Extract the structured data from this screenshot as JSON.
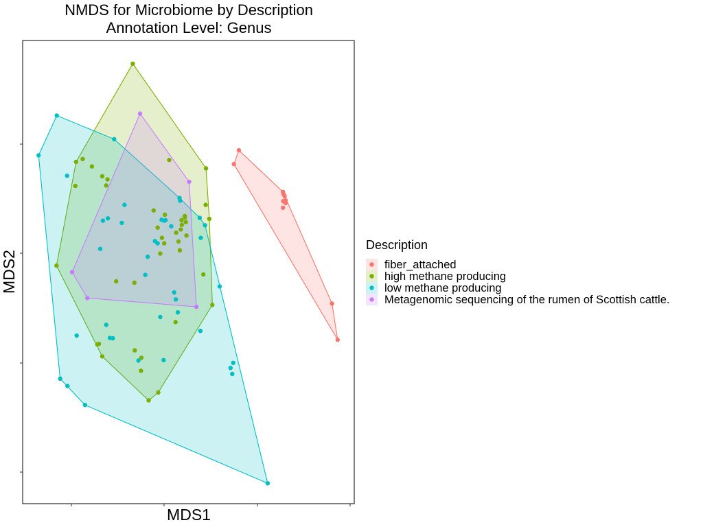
{
  "chart_data": {
    "type": "scatter",
    "title": [
      "NMDS for Microbiome by Description",
      "Annotation Level: Genus"
    ],
    "xlabel": "MDS1",
    "ylabel": "MDS2",
    "xlim": [
      0,
      100
    ],
    "ylim": [
      0,
      100
    ],
    "grid": false,
    "hulls": true,
    "legend": {
      "title": "Description",
      "placement": "right"
    },
    "series": [
      {
        "name": "fiber_attached",
        "color": "#F8766D",
        "points": [
          [
            65.2,
            76.3
          ],
          [
            63.7,
            73.3
          ],
          [
            78.5,
            67.3
          ],
          [
            78.7,
            66.8
          ],
          [
            79.0,
            66.4
          ],
          [
            79.3,
            65.5
          ],
          [
            78.6,
            65.3
          ],
          [
            79.3,
            64.9
          ],
          [
            78.5,
            63.9
          ],
          [
            93.3,
            43.2
          ],
          [
            95.0,
            35.4
          ]
        ]
      },
      {
        "name": "high methane producing",
        "color": "#7CAE00",
        "points": [
          [
            33.2,
            95.0
          ],
          [
            44.2,
            74.2
          ],
          [
            55.3,
            72.4
          ],
          [
            16.1,
            73.8
          ],
          [
            18.1,
            74.4
          ],
          [
            20.9,
            72.8
          ],
          [
            15.9,
            68.6
          ],
          [
            24.0,
            70.7
          ],
          [
            25.6,
            70.0
          ],
          [
            25.2,
            68.7
          ],
          [
            55.2,
            64.5
          ],
          [
            56.3,
            61.5
          ],
          [
            48.9,
            62.1
          ],
          [
            47.9,
            61.2
          ],
          [
            48.9,
            61.8
          ],
          [
            39.5,
            63.3
          ],
          [
            42.9,
            62.4
          ],
          [
            49.2,
            60.8
          ],
          [
            48.0,
            60.2
          ],
          [
            40.7,
            59.6
          ],
          [
            47.7,
            59.2
          ],
          [
            46.3,
            58.5
          ],
          [
            42.0,
            57.4
          ],
          [
            49.4,
            57.9
          ],
          [
            47.0,
            56.6
          ],
          [
            42.7,
            56.2
          ],
          [
            47.4,
            54.7
          ],
          [
            41.5,
            54.0
          ],
          [
            10.2,
            51.4
          ],
          [
            54.5,
            49.5
          ],
          [
            28.2,
            48.0
          ],
          [
            33.7,
            47.7
          ],
          [
            57.2,
            42.9
          ],
          [
            46.1,
            39.2
          ],
          [
            23.0,
            34.5
          ],
          [
            22.5,
            34.4
          ],
          [
            24.0,
            31.8
          ],
          [
            33.8,
            33.1
          ],
          [
            35.8,
            31.5
          ],
          [
            35.7,
            28.7
          ],
          [
            40.9,
            24.0
          ],
          [
            38.0,
            22.3
          ]
        ]
      },
      {
        "name": "low methane producing",
        "color": "#00BFC4",
        "points": [
          [
            10.3,
            83.8
          ],
          [
            27.6,
            78.7
          ],
          [
            4.8,
            75.2
          ],
          [
            13.4,
            70.8
          ],
          [
            47.3,
            66.0
          ],
          [
            47.5,
            65.4
          ],
          [
            30.7,
            64.5
          ],
          [
            53.4,
            61.7
          ],
          [
            25.7,
            61.6
          ],
          [
            24.2,
            61.1
          ],
          [
            29.9,
            60.6
          ],
          [
            55.0,
            60.1
          ],
          [
            41.9,
            61.3
          ],
          [
            42.7,
            61.1
          ],
          [
            43.1,
            61.2
          ],
          [
            44.8,
            59.9
          ],
          [
            53.7,
            57.4
          ],
          [
            39.9,
            56.7
          ],
          [
            40.7,
            56.2
          ],
          [
            23.4,
            55.0
          ],
          [
            37.7,
            53.3
          ],
          [
            37.0,
            49.4
          ],
          [
            59.4,
            46.9
          ],
          [
            45.7,
            45.6
          ],
          [
            46.2,
            44.1
          ],
          [
            46.8,
            41.3
          ],
          [
            41.5,
            40.3
          ],
          [
            25.2,
            38.6
          ],
          [
            53.6,
            37.3
          ],
          [
            16.3,
            36.3
          ],
          [
            26.3,
            35.8
          ],
          [
            27.2,
            35.7
          ],
          [
            34.9,
            30.9
          ],
          [
            42.5,
            31.0
          ],
          [
            63.5,
            30.4
          ],
          [
            62.7,
            29.3
          ],
          [
            63.2,
            28.0
          ],
          [
            11.3,
            27.0
          ],
          [
            13.5,
            25.4
          ],
          [
            18.8,
            21.3
          ],
          [
            73.9,
            4.4
          ]
        ]
      },
      {
        "name": "Metagenomic sequencing of the rumen of Scottish cattle.",
        "color": "#C77CFF",
        "points": [
          [
            35.4,
            84.2
          ],
          [
            50.2,
            69.5
          ],
          [
            14.9,
            50.0
          ],
          [
            19.5,
            44.4
          ],
          [
            52.4,
            42.5
          ]
        ]
      }
    ]
  }
}
